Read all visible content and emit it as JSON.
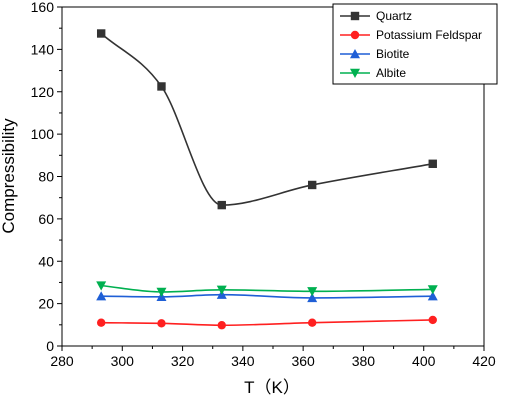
{
  "chart_data": {
    "type": "line",
    "title": "",
    "xlabel": "T（K）",
    "ylabel": "Compressibility",
    "xlim": [
      280,
      420
    ],
    "ylim": [
      0,
      160
    ],
    "xticks": [
      280,
      300,
      320,
      340,
      360,
      380,
      400,
      420
    ],
    "yticks": [
      0,
      20,
      40,
      60,
      80,
      100,
      120,
      140,
      160
    ],
    "grid": false,
    "legend_position": "top-right",
    "x": [
      293,
      313,
      333,
      363,
      403
    ],
    "series": [
      {
        "name": "Quartz",
        "values": [
          147.5,
          122.5,
          66.5,
          76,
          86
        ],
        "color": "#333333",
        "marker": "square",
        "smooth": true
      },
      {
        "name": "Potassium Feldspar",
        "values": [
          11,
          10.7,
          9.8,
          11,
          12.3
        ],
        "color": "#ff2020",
        "marker": "circle",
        "smooth": true
      },
      {
        "name": "Biotite",
        "values": [
          23.5,
          23.2,
          24.2,
          22.7,
          23.5
        ],
        "color": "#1f5fd6",
        "marker": "triangle-up",
        "smooth": true
      },
      {
        "name": "Albite",
        "values": [
          28.5,
          25.5,
          26.5,
          25.8,
          26.7
        ],
        "color": "#00b050",
        "marker": "triangle-down",
        "smooth": true
      }
    ]
  }
}
